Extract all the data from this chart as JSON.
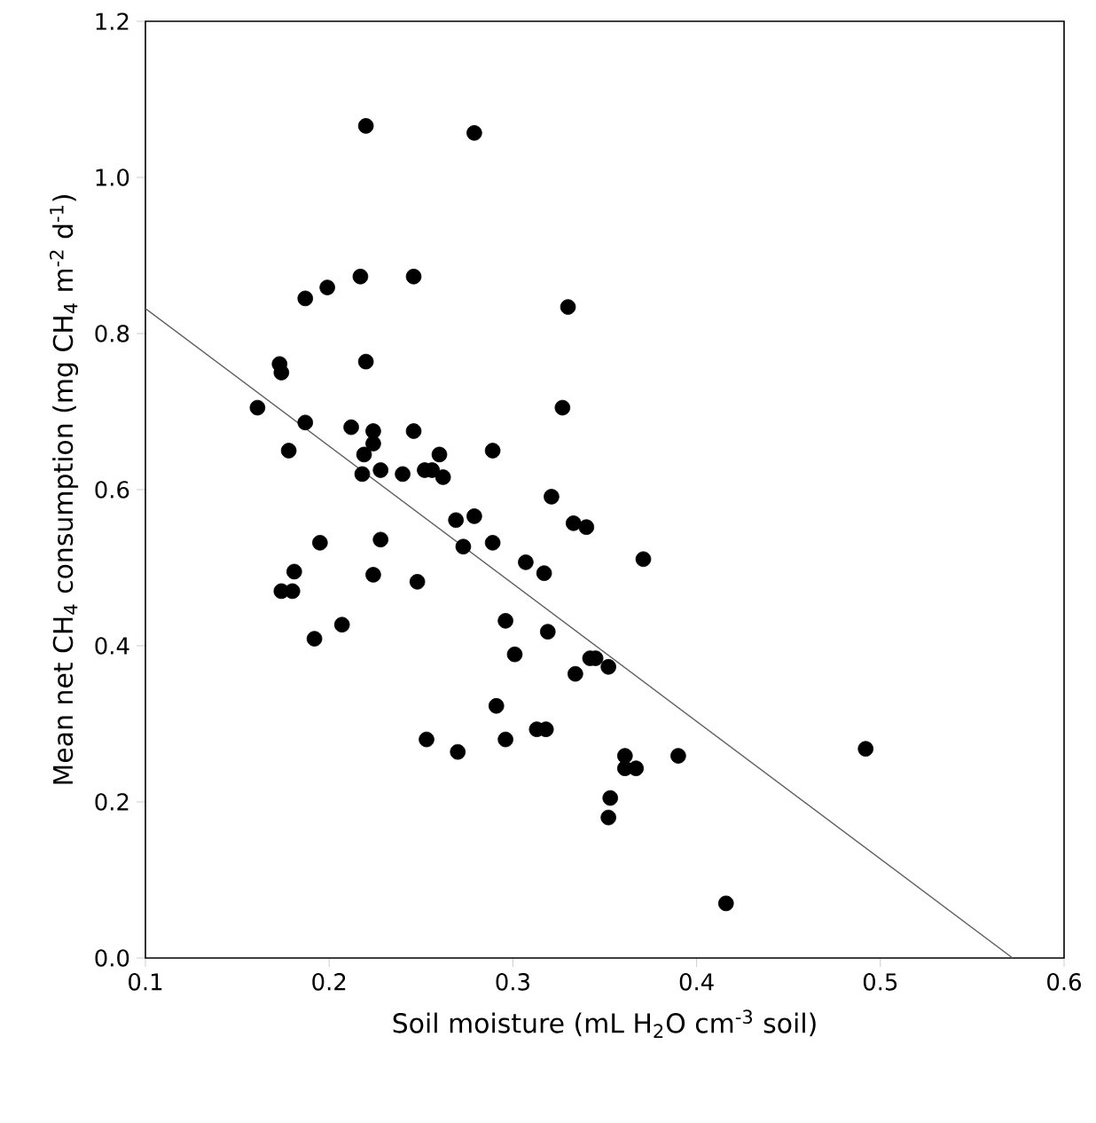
{
  "chart_data": {
    "type": "scatter",
    "xlabel": "Soil moisture (mL H$_{2}$O cm$^{-3}$ soil)",
    "ylabel": "Mean net CH$_{4}$ consumption (mg CH$_{4}$ m$^{-2}$ d$^{-1}$)",
    "xlim": [
      0.1,
      0.6
    ],
    "ylim": [
      0,
      1.2
    ],
    "xticks": [
      0.1,
      0.2,
      0.3,
      0.4,
      0.5,
      0.6
    ],
    "yticks": [
      {
        "value": 0,
        "label": "0.0"
      },
      {
        "value": 0.2,
        "label": "0.2"
      },
      {
        "value": 0.4,
        "label": "0.4"
      },
      {
        "value": 0.6,
        "label": "0.6"
      },
      {
        "value": 0.8,
        "label": "0.8"
      },
      {
        "value": 1.0,
        "label": "1.0"
      },
      {
        "value": 1.2,
        "label": "1.2"
      }
    ],
    "series": [
      {
        "marker": "circle",
        "color": "#000000",
        "x": [
          0.22,
          0.279,
          0.187,
          0.199,
          0.217,
          0.246,
          0.33,
          0.173,
          0.174,
          0.22,
          0.161,
          0.327,
          0.187,
          0.212,
          0.224,
          0.246,
          0.178,
          0.224,
          0.219,
          0.26,
          0.289,
          0.218,
          0.228,
          0.24,
          0.252,
          0.256,
          0.262,
          0.321,
          0.269,
          0.279,
          0.333,
          0.34,
          0.195,
          0.228,
          0.273,
          0.289,
          0.181,
          0.224,
          0.307,
          0.317,
          0.174,
          0.18,
          0.248,
          0.207,
          0.192,
          0.296,
          0.319,
          0.301,
          0.342,
          0.345,
          0.334,
          0.291,
          0.313,
          0.318,
          0.253,
          0.296,
          0.27,
          0.371,
          0.352,
          0.361,
          0.361,
          0.367,
          0.39,
          0.492,
          0.353,
          0.352,
          0.416
        ],
        "values": [
          1.066,
          1.057,
          0.845,
          0.859,
          0.873,
          0.873,
          0.834,
          0.761,
          0.75,
          0.764,
          0.705,
          0.705,
          0.686,
          0.68,
          0.675,
          0.675,
          0.65,
          0.659,
          0.645,
          0.645,
          0.65,
          0.62,
          0.625,
          0.62,
          0.625,
          0.625,
          0.616,
          0.591,
          0.561,
          0.566,
          0.557,
          0.552,
          0.532,
          0.536,
          0.527,
          0.532,
          0.495,
          0.491,
          0.507,
          0.493,
          0.47,
          0.47,
          0.482,
          0.427,
          0.409,
          0.432,
          0.418,
          0.389,
          0.384,
          0.384,
          0.364,
          0.323,
          0.293,
          0.293,
          0.28,
          0.28,
          0.264,
          0.511,
          0.373,
          0.259,
          0.243,
          0.243,
          0.259,
          0.268,
          0.205,
          0.18,
          0.07
        ]
      },
      {
        "type": "line",
        "marker": "none",
        "line_style": "solid",
        "color": "#606060",
        "x": [
          0.1,
          0.572
        ],
        "values": [
          0.832,
          0
        ]
      }
    ]
  }
}
